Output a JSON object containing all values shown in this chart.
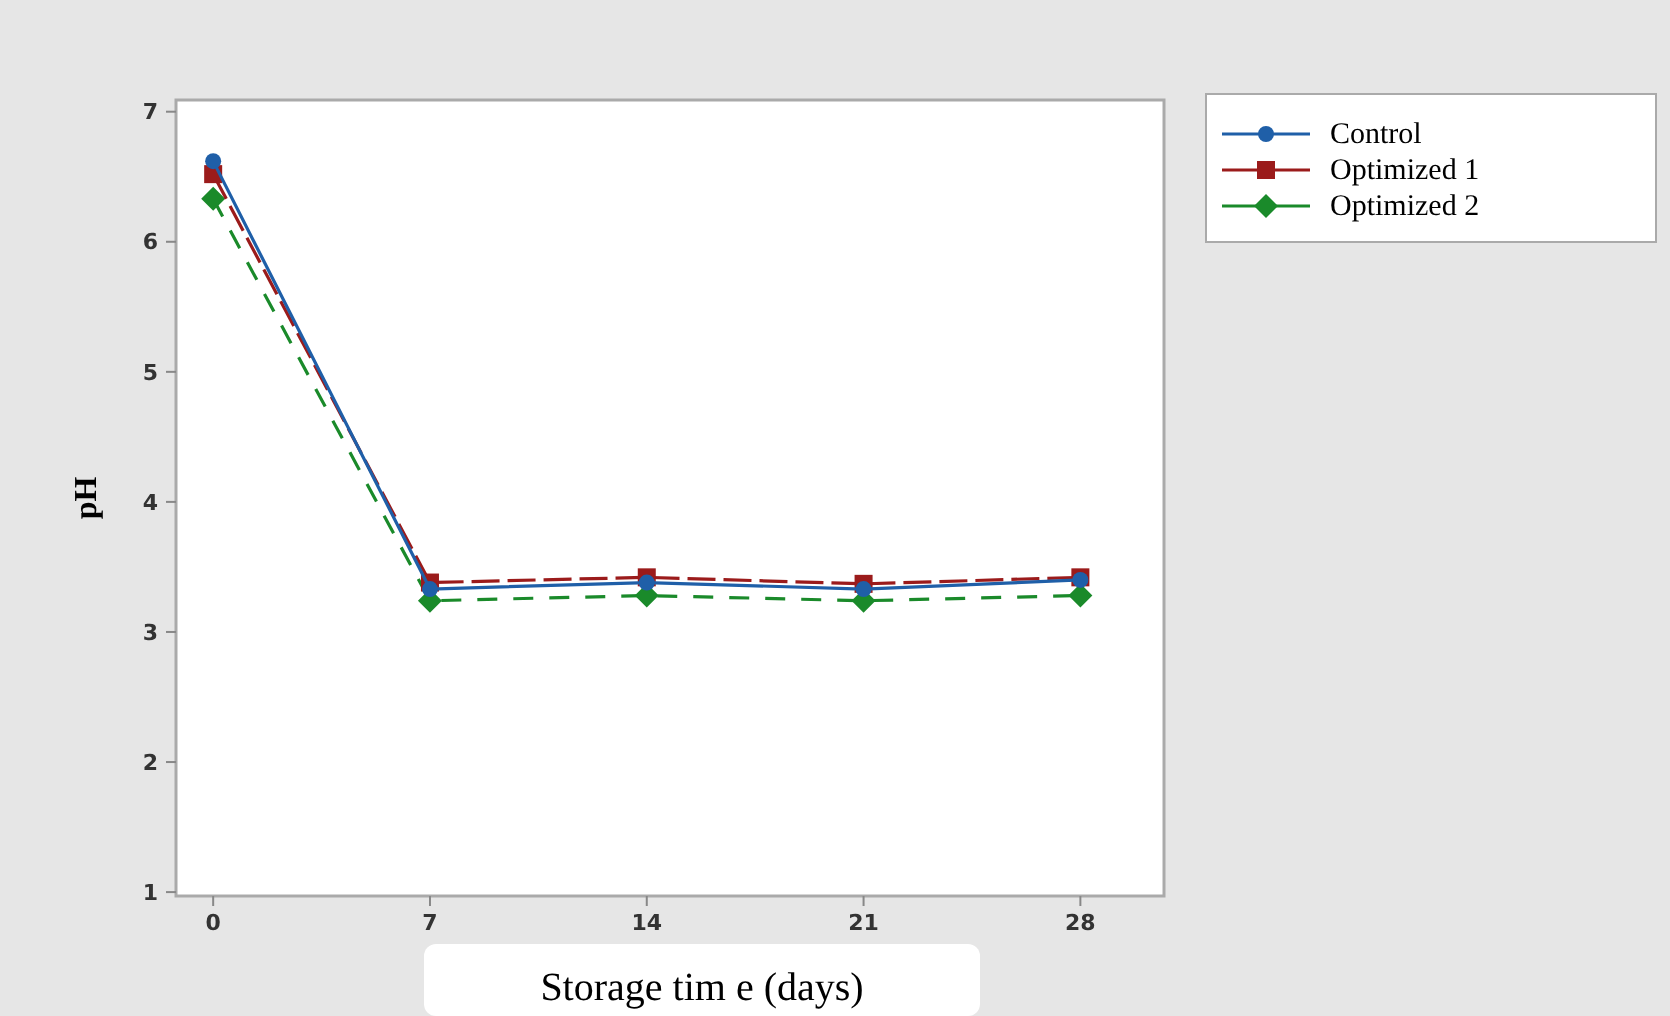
{
  "chart_data": {
    "type": "line",
    "xlabel": "Storage tim e (days)",
    "ylabel": "pH",
    "x": [
      0,
      7,
      14,
      21,
      28
    ],
    "xlim": [
      -1.2,
      30.7
    ],
    "xticks": [
      0,
      7,
      14,
      21,
      28
    ],
    "ylim": [
      0.97,
      7.09
    ],
    "yticks": [
      1,
      2,
      3,
      4,
      5,
      6,
      7
    ],
    "grid": false,
    "legend": "top right",
    "series": [
      {
        "name": "Control",
        "color": "#1f5fa8",
        "values": [
          6.62,
          3.33,
          3.38,
          3.33,
          3.4
        ],
        "marker": "circle",
        "line_style": "solid"
      },
      {
        "name": "Optimized 1",
        "color": "#9b1b1b",
        "values": [
          6.52,
          3.38,
          3.42,
          3.37,
          3.42
        ],
        "marker": "square",
        "line_style": "dashed"
      },
      {
        "name": "Optimized 2",
        "color": "#1a8a2a",
        "values": [
          6.33,
          3.24,
          3.28,
          3.24,
          3.28
        ],
        "marker": "diamond",
        "line_style": "dotted"
      }
    ]
  }
}
